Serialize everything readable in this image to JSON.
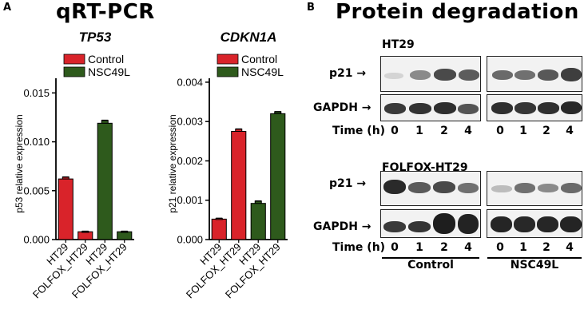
{
  "panel_a": {
    "letter": "A",
    "title": "qRT-PCR"
  },
  "panel_b": {
    "letter": "B",
    "title": "Protein degradation",
    "blots": [
      {
        "cell_line": "HT29",
        "rows": [
          "p21 →",
          "GAPDH →"
        ],
        "time_label": "Time (h)",
        "times": [
          "0",
          "1",
          "2",
          "4",
          "0",
          "1",
          "2",
          "4"
        ]
      },
      {
        "cell_line": "FOLFOX-HT29",
        "rows": [
          "p21 →",
          "GAPDH →"
        ],
        "time_label": "Time (h)",
        "times": [
          "0",
          "1",
          "2",
          "4",
          "0",
          "1",
          "2",
          "4"
        ]
      }
    ],
    "groups": [
      "Control",
      "NSC49L"
    ]
  },
  "colors": {
    "control": "#d9232a",
    "nsc49l": "#2e5a1c"
  },
  "chart_data": [
    {
      "type": "bar",
      "title": "TP53",
      "ylabel": "p53 relative expression",
      "xlabel": "",
      "categories": [
        "HT29",
        "FOLFOX_HT29",
        "HT29",
        "FOLFOX_HT29"
      ],
      "bar_series": [
        "Control",
        "Control",
        "NSC49L",
        "NSC49L"
      ],
      "values": [
        0.0062,
        0.0008,
        0.0119,
        0.0008
      ],
      "errors": [
        0.0002,
        5e-05,
        0.0003,
        5e-05
      ],
      "legend": [
        "Control",
        "NSC49L"
      ],
      "yticks": [
        "0.000",
        "0.005",
        "0.010",
        "0.015"
      ],
      "ylim": [
        0,
        0.0165
      ]
    },
    {
      "type": "bar",
      "title": "CDKN1A",
      "ylabel": "p21 relative expression",
      "xlabel": "",
      "categories": [
        "HT29",
        "FOLFOX_HT29",
        "HT29",
        "FOLFOX_HT29"
      ],
      "bar_series": [
        "Control",
        "Control",
        "NSC49L",
        "NSC49L"
      ],
      "values": [
        0.00052,
        0.00275,
        0.00092,
        0.0032
      ],
      "errors": [
        2e-05,
        6e-05,
        6e-05,
        5e-05
      ],
      "legend": [
        "Control",
        "NSC49L"
      ],
      "yticks": [
        "0.000",
        "0.001",
        "0.002",
        "0.003",
        "0.004"
      ],
      "ylim": [
        0,
        0.0041
      ]
    }
  ]
}
